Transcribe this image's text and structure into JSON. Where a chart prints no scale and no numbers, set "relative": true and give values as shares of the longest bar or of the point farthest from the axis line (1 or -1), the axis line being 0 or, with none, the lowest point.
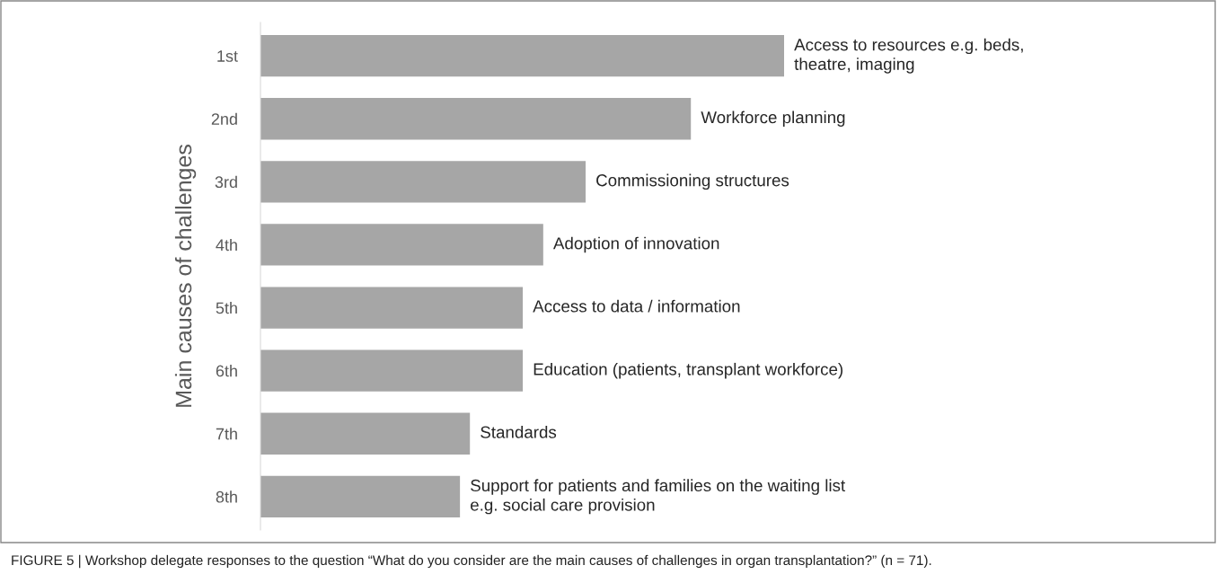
{
  "chart_data": {
    "type": "bar",
    "orientation": "horizontal",
    "relative": true,
    "ylabel": "Main causes of challenges",
    "categories": [
      "1st",
      "2nd",
      "3rd",
      "4th",
      "5th",
      "6th",
      "7th",
      "8th"
    ],
    "values": [
      1,
      0.822,
      0.621,
      0.54,
      0.501,
      0.501,
      0.4,
      0.381
    ],
    "color": "#a6a6a6",
    "annotations": [
      {
        "text": "Access to resources e.g. beds,\ntheatre, imaging",
        "x": 1,
        "y": "1st"
      },
      {
        "text": "Workforce planning",
        "x": 0.822,
        "y": "2nd"
      },
      {
        "text": "Commissioning structures",
        "x": 0.621,
        "y": "3rd"
      },
      {
        "text": "Adoption of innovation",
        "x": 0.54,
        "y": "4th"
      },
      {
        "text": "Access to data / information",
        "x": 0.501,
        "y": "5th"
      },
      {
        "text": "Education (patients, transplant workforce)",
        "x": 0.501,
        "y": "6th"
      },
      {
        "text": "Standards",
        "x": 0.4,
        "y": "7th"
      },
      {
        "text": "Support for patients and families on the waiting list\ne.g. social care provision",
        "x": 0.381,
        "y": "8th"
      },
      "FIGURE 5 | Workshop delegate responses to the question “What do you consider are the main causes of challenges in organ transplantation?” (n = 71)."
    ]
  }
}
